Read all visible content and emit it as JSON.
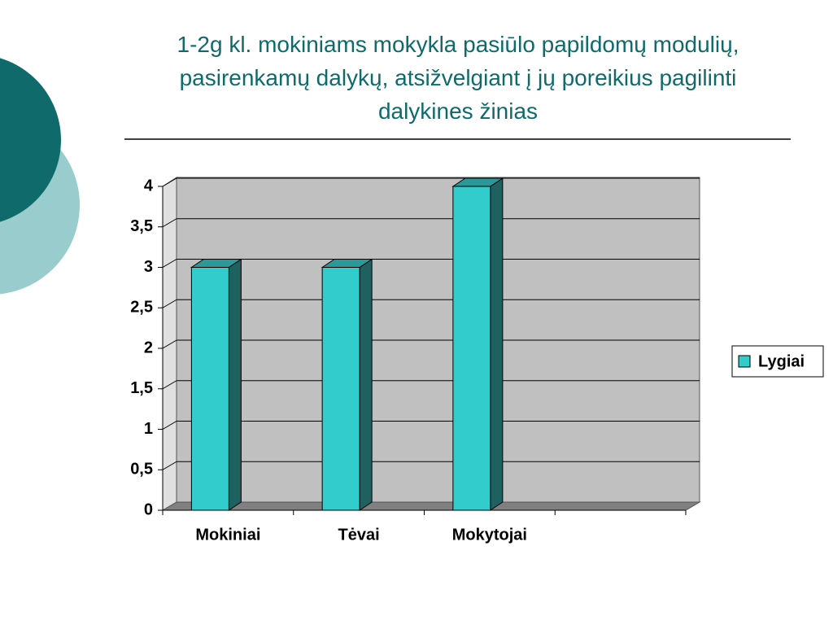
{
  "chart_data": {
    "type": "bar3d",
    "title": "1-2g kl. mokiniams mokykla pasiūlo papildomų modulių, pasirenkamų dalykų, atsižvelgiant į jų poreikius pagilinti dalykines žinias",
    "categories": [
      "Mokiniai",
      "Tėvai",
      "Mokytojai",
      null
    ],
    "series": [
      {
        "name": "Lygiai",
        "color": "#33cccc",
        "values": [
          3,
          3,
          4,
          null
        ]
      }
    ],
    "ylim": [
      0,
      4
    ],
    "yticks": [
      0,
      {
        "value": 0.5,
        "label": "0,5"
      },
      1,
      {
        "value": 1.5,
        "label": "1,5"
      },
      2,
      {
        "value": 2.5,
        "label": "2,5"
      },
      3,
      {
        "value": 3.5,
        "label": "3,5"
      },
      4
    ],
    "grid": true,
    "legend": "right"
  }
}
